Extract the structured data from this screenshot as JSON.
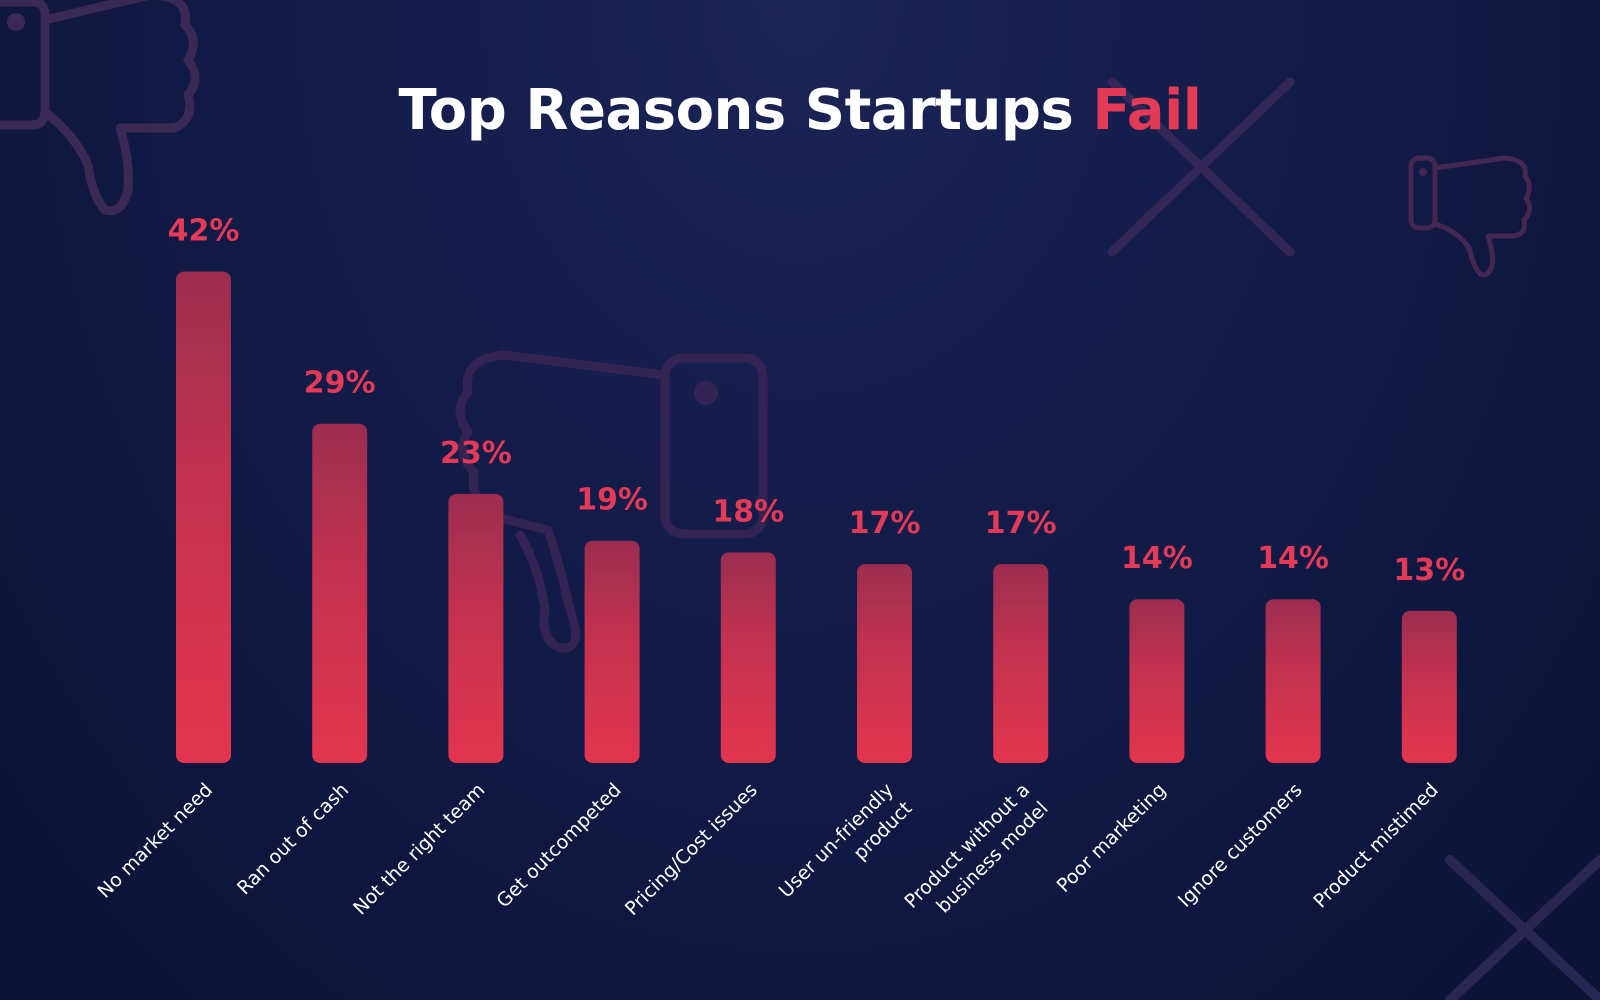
{
  "title": {
    "main": "Top Reasons Startups",
    "accent": "Fail"
  },
  "colors": {
    "background": "#111a45",
    "bar_top": "#9c2d50",
    "bar_bottom": "#e3354f",
    "value_label": "#e23a57",
    "category_label": "#ffffff",
    "decoration": "#4a2a55"
  },
  "icons": [
    "thumbs-down-icon",
    "thumbs-down-icon",
    "thumbs-down-icon",
    "x-mark-icon",
    "x-mark-icon"
  ],
  "chart_data": {
    "type": "bar",
    "title": "Top Reasons Startups Fail",
    "categories": [
      "No market need",
      "Ran out of cash",
      "Not the right team",
      "Get outcompeted",
      "Pricing/Cost issues",
      "User un-friendly product",
      "Product without a business model",
      "Poor marketing",
      "Ignore customers",
      "Product mistimed"
    ],
    "category_lines": [
      [
        "No market need"
      ],
      [
        "Ran out of cash"
      ],
      [
        "Not the right team"
      ],
      [
        "Get outcompeted"
      ],
      [
        "Pricing/Cost issues"
      ],
      [
        "User un-friendly",
        "product"
      ],
      [
        "Product without a",
        "business model"
      ],
      [
        "Poor marketing"
      ],
      [
        "Ignore customers"
      ],
      [
        "Product mistimed"
      ]
    ],
    "values": [
      42,
      29,
      23,
      19,
      18,
      17,
      17,
      14,
      14,
      13
    ],
    "value_labels": [
      "42%",
      "29%",
      "23%",
      "19%",
      "18%",
      "17%",
      "17%",
      "14%",
      "14%",
      "13%"
    ],
    "unit": "%",
    "xlabel": "",
    "ylabel": "",
    "grid": false,
    "legend": "none"
  }
}
